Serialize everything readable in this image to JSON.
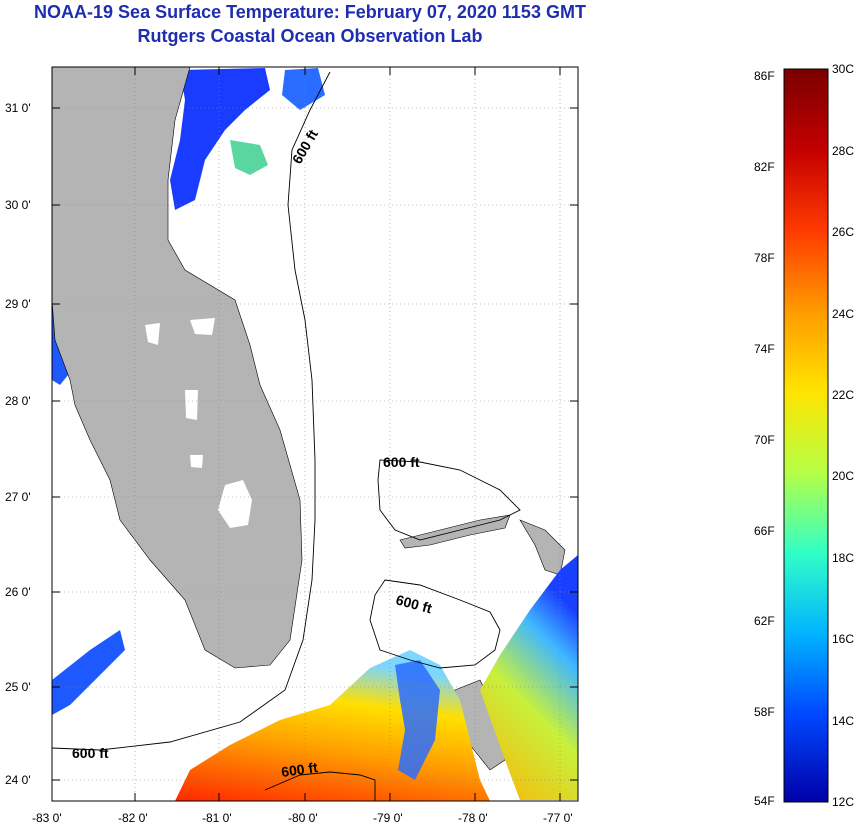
{
  "title": {
    "line1": "NOAA-19 Sea Surface Temperature:  February 07, 2020 1153 GMT",
    "line2": "Rutgers Coastal Ocean Observation Lab"
  },
  "map": {
    "lat_labels": [
      "31 0'",
      "30 0'",
      "29 0'",
      "28 0'",
      "27 0'",
      "26 0'",
      "25 0'",
      "24 0'"
    ],
    "lon_labels": [
      "-83 0'",
      "-82 0'",
      "-81 0'",
      "-80 0'",
      "-79 0'",
      "-78 0'",
      "-77 0'"
    ],
    "contour_label": "600 ft",
    "colors": {
      "land": "#b4b4b4",
      "frame": "#000000",
      "grid": "#888888"
    }
  },
  "colorbar": {
    "f_labels": [
      "86F",
      "82F",
      "78F",
      "74F",
      "70F",
      "66F",
      "62F",
      "58F",
      "54F"
    ],
    "c_labels": [
      "30C",
      "28C",
      "26C",
      "24C",
      "22C",
      "20C",
      "18C",
      "16C",
      "14C",
      "12C"
    ],
    "colors": [
      "#7a0000",
      "#c40000",
      "#ff3a00",
      "#ff9a00",
      "#ffe400",
      "#b6ff45",
      "#32ffc6",
      "#00b4ff",
      "#0048ff",
      "#0000a8"
    ]
  }
}
